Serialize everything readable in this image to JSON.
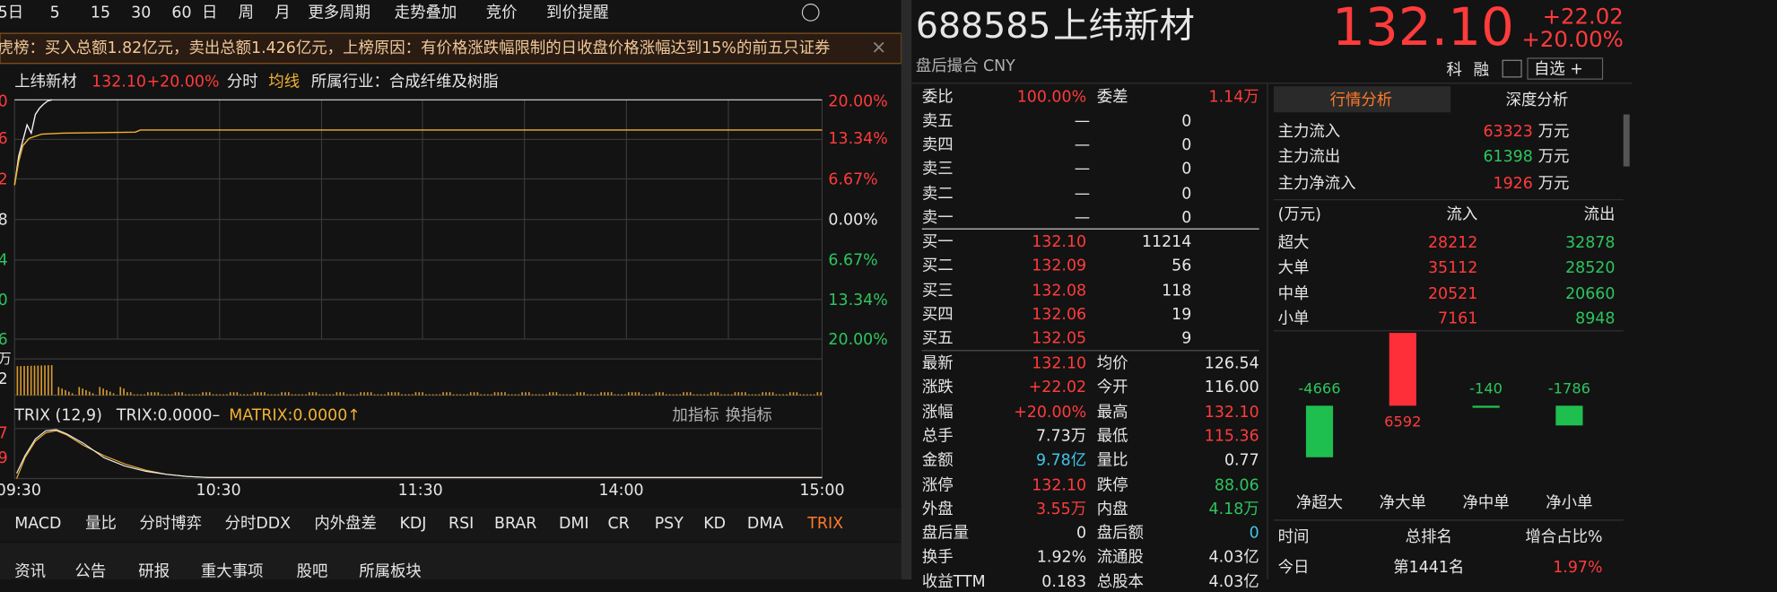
{
  "toolbar": [
    "5日",
    "5",
    "15",
    "30",
    "60",
    "日",
    "周",
    "月",
    "更多周期",
    "走势叠加",
    "竞价",
    "到价提醒"
  ],
  "banner": "虎榜：买入总额1.82亿元，卖出总额1.426亿元，上榜原因：有价格涨跌幅限制的日收盘价格涨幅达到15%的前五只证券",
  "chart_header": {
    "name": "上纬新材",
    "price": "132.10",
    "change": "+20.00%",
    "mode": "分时",
    "avg": "均线",
    "industry": "所属行业：合成纤维及树脂"
  },
  "price_axis_right": [
    "20.00%",
    "13.34%",
    "6.67%",
    "0.00%",
    "6.67%",
    "13.34%",
    "20.00%"
  ],
  "price_axis_left": [
    "0",
    "6",
    "2",
    "8",
    "4",
    "0",
    "6"
  ],
  "volume_axis_left": [
    "万",
    "2"
  ],
  "trix": {
    "name": "TRIX (12,9)",
    "trix": "TRIX:0.0000–",
    "matrix": "MATRIX:0.0000↑",
    "add": "加指标",
    "switch": "换指标",
    "axis_left": [
      "7",
      "9"
    ]
  },
  "time_axis": [
    "09:30",
    "10:30",
    "11:30",
    "14:00",
    "15:00"
  ],
  "indicator_tabs": [
    "MACD",
    "量比",
    "分时博弈",
    "分时DDX",
    "内外盘差",
    "KDJ",
    "RSI",
    "BRAR",
    "DMI",
    "CR",
    "PSY",
    "KD",
    "DMA",
    "TRIX"
  ],
  "bottom_tabs": [
    "资讯",
    "公告",
    "研报",
    "重大事项",
    "股吧",
    "所属板块"
  ],
  "quote": {
    "code": "688585",
    "name": "上纬新材",
    "price": "132.10",
    "change": "+22.02",
    "pct": "+20.00%",
    "status": "盘后撮合 CNY",
    "buttons": [
      "科",
      "融"
    ],
    "watch": "自选 +"
  },
  "order_book": {
    "ratio_label": "委比",
    "ratio": "100.00%",
    "diff_label": "委差",
    "diff": "1.14万",
    "sells": [
      {
        "label": "卖五",
        "price": "—",
        "vol": "0"
      },
      {
        "label": "卖四",
        "price": "—",
        "vol": "0"
      },
      {
        "label": "卖三",
        "price": "—",
        "vol": "0"
      },
      {
        "label": "卖二",
        "price": "—",
        "vol": "0"
      },
      {
        "label": "卖一",
        "price": "—",
        "vol": "0"
      }
    ],
    "buys": [
      {
        "label": "买一",
        "price": "132.10",
        "vol": "11214"
      },
      {
        "label": "买二",
        "price": "132.09",
        "vol": "56"
      },
      {
        "label": "买三",
        "price": "132.08",
        "vol": "118"
      },
      {
        "label": "买四",
        "price": "132.06",
        "vol": "19"
      },
      {
        "label": "买五",
        "price": "132.05",
        "vol": "9"
      }
    ]
  },
  "stats": [
    {
      "l1": "最新",
      "v1": "132.10",
      "c1": "red",
      "l2": "均价",
      "v2": "126.54",
      "c2": "white"
    },
    {
      "l1": "涨跌",
      "v1": "+22.02",
      "c1": "red",
      "l2": "今开",
      "v2": "116.00",
      "c2": "white"
    },
    {
      "l1": "涨幅",
      "v1": "+20.00%",
      "c1": "red",
      "l2": "最高",
      "v2": "132.10",
      "c2": "red"
    },
    {
      "l1": "总手",
      "v1": "7.73万",
      "c1": "white",
      "l2": "最低",
      "v2": "115.36",
      "c2": "red"
    },
    {
      "l1": "金额",
      "v1": "9.78亿",
      "c1": "cyan",
      "l2": "量比",
      "v2": "0.77",
      "c2": "white"
    },
    {
      "l1": "涨停",
      "v1": "132.10",
      "c1": "red",
      "l2": "跌停",
      "v2": "88.06",
      "c2": "green"
    },
    {
      "l1": "外盘",
      "v1": "3.55万",
      "c1": "red",
      "l2": "内盘",
      "v2": "4.18万",
      "c2": "green"
    },
    {
      "l1": "盘后量",
      "v1": "0",
      "c1": "white",
      "l2": "盘后额",
      "v2": "0",
      "c2": "cyan"
    },
    {
      "l1": "换手",
      "v1": "1.92%",
      "c1": "white",
      "l2": "流通股",
      "v2": "4.03亿",
      "c2": "white"
    },
    {
      "l1": "收益TTM",
      "v1": "0.183",
      "c1": "white",
      "l2": "总股本",
      "v2": "4.03亿",
      "c2": "white"
    }
  ],
  "analysis": {
    "tabs": [
      "行情分析",
      "深度分析"
    ],
    "main": [
      {
        "label": "主力流入",
        "value": "63323",
        "color": "red"
      },
      {
        "label": "主力流出",
        "value": "61398",
        "color": "green"
      },
      {
        "label": "主力净流入",
        "value": "1926",
        "color": "red"
      }
    ],
    "unit": "万元",
    "flow_header": [
      "(万元)",
      "流入",
      "流出"
    ],
    "flows": [
      {
        "label": "超大",
        "in": "28212",
        "out": "32878"
      },
      {
        "label": "大单",
        "in": "35112",
        "out": "28520"
      },
      {
        "label": "中单",
        "in": "20521",
        "out": "20660"
      },
      {
        "label": "小单",
        "in": "7161",
        "out": "8948"
      }
    ],
    "rank_header": [
      "时间",
      "总排名",
      "增合占比%"
    ],
    "rank_row": [
      "今日",
      "第1441名",
      "1.97%"
    ]
  },
  "chart_data": {
    "type": "bar",
    "categories": [
      "净超大",
      "净大单",
      "净中单",
      "净小单"
    ],
    "values": [
      -4666,
      6592,
      -140,
      -1786
    ],
    "colors": {
      "positive": "#ff2f3a",
      "negative": "#1fbf4f"
    }
  }
}
